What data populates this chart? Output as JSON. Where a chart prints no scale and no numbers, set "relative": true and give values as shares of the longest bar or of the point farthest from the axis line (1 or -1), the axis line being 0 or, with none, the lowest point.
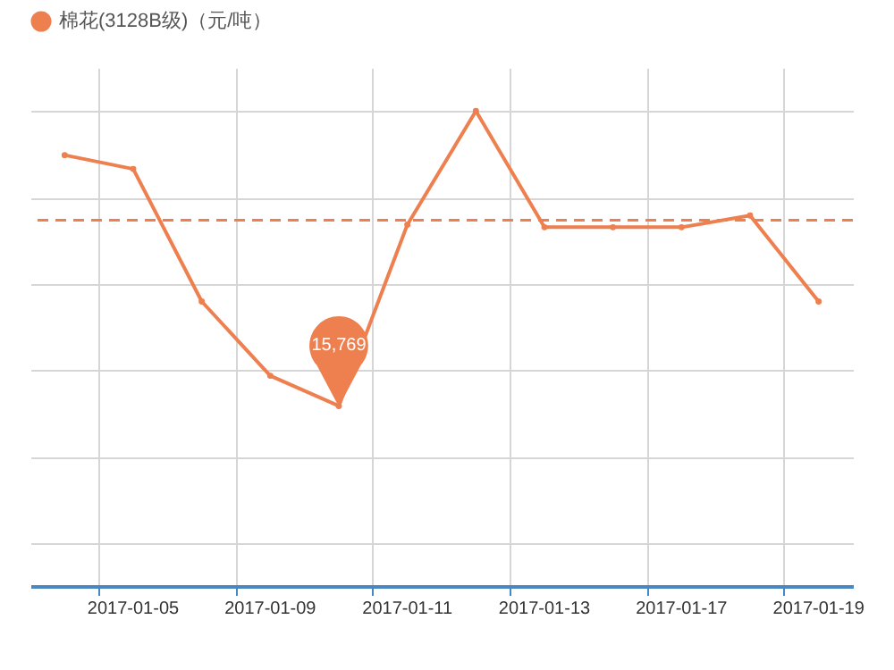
{
  "chart_data": {
    "type": "line",
    "relative": true,
    "categories": [
      null,
      "2017-01-05",
      null,
      "2017-01-09",
      null,
      "2017-01-11",
      null,
      "2017-01-13",
      null,
      "2017-01-17",
      null,
      "2017-01-19"
    ],
    "series": [
      {
        "name": "棉花(3128B级)（元/吨）",
        "color": "#ee7f4f",
        "values": [
          0.898,
          0.866,
          0.559,
          0.387,
          0.317,
          0.737,
          1,
          0.731,
          0.731,
          0.731,
          0.758,
          0.559
        ]
      }
    ],
    "annotations": [
      "15,769"
    ],
    "ref_lines": [
      {
        "axis": "y",
        "value": 0.747,
        "color": "#ee7f4f",
        "line_style": "dashed"
      }
    ],
    "grid": true,
    "legend": "top",
    "marker": "circle",
    "line_style": "solid"
  }
}
